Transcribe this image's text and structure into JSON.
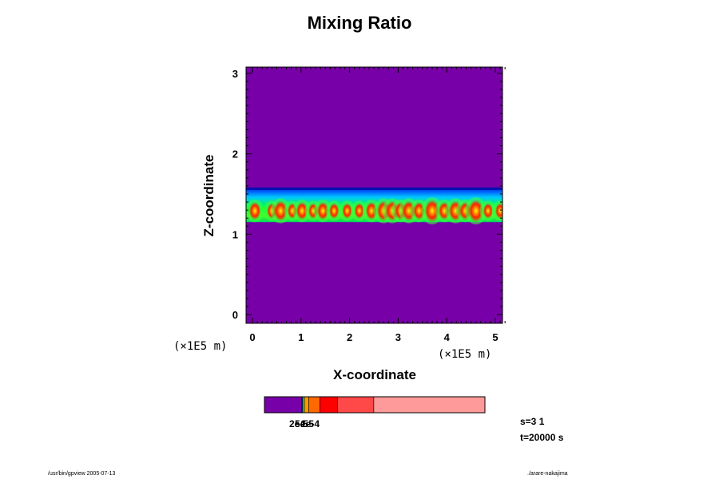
{
  "chart_data": {
    "type": "heatmap",
    "title": "Mixing Ratio",
    "xlabel": "X-coordinate",
    "ylabel": "Z-coordinate",
    "x_unit": "(×1E5 m)",
    "xlim": [
      0,
      5.2
    ],
    "ylim": [
      0,
      3
    ],
    "x_ticks": [
      "0",
      "1",
      "2",
      "3",
      "4",
      "5"
    ],
    "y_ticks": [
      "0",
      "1",
      "2",
      "3"
    ],
    "background_color": "#7700a8",
    "band": {
      "z_bottom": 1.15,
      "z_top": 1.58,
      "cell_z_center": 1.29
    },
    "cells": [
      {
        "x": 0.05,
        "level": 3
      },
      {
        "x": 0.4,
        "level": 2
      },
      {
        "x": 0.58,
        "level": 4
      },
      {
        "x": 0.82,
        "level": 2
      },
      {
        "x": 1.02,
        "level": 3
      },
      {
        "x": 1.25,
        "level": 2
      },
      {
        "x": 1.45,
        "level": 3
      },
      {
        "x": 1.68,
        "level": 2
      },
      {
        "x": 1.95,
        "level": 2
      },
      {
        "x": 2.2,
        "level": 2
      },
      {
        "x": 2.45,
        "level": 3
      },
      {
        "x": 2.7,
        "level": 4
      },
      {
        "x": 2.88,
        "level": 4
      },
      {
        "x": 3.05,
        "level": 3
      },
      {
        "x": 3.22,
        "level": 4
      },
      {
        "x": 3.43,
        "level": 3
      },
      {
        "x": 3.7,
        "level": 5
      },
      {
        "x": 3.95,
        "level": 3
      },
      {
        "x": 4.18,
        "level": 4
      },
      {
        "x": 4.38,
        "level": 3
      },
      {
        "x": 4.6,
        "level": 5
      },
      {
        "x": 4.85,
        "level": 2
      },
      {
        "x": 5.1,
        "level": 2
      }
    ],
    "colorbar": {
      "segments": [
        {
          "color": "#7700a8",
          "weight": 0.168
        },
        {
          "color": "#1030ff",
          "weight": 0.004
        },
        {
          "color": "#00c8ff",
          "weight": 0.004
        },
        {
          "color": "#ffff00",
          "weight": 0.007
        },
        {
          "color": "#ff9a00",
          "weight": 0.018
        },
        {
          "color": "#ff6a00",
          "weight": 0.05
        },
        {
          "color": "#ff0000",
          "weight": 0.08
        },
        {
          "color": "#ff4848",
          "weight": 0.165
        },
        {
          "color": "#ff9a9a",
          "weight": 0.504
        }
      ],
      "tick_labels": [
        "2e-5",
        "5e-5",
        "1e-4"
      ]
    }
  },
  "annotations": {
    "s_label": "s=3 1",
    "t_label": "t=20000 s",
    "footer_left": "/usr/bin/gpview 2005-07-13",
    "footer_right": "./arare-nakajima"
  }
}
